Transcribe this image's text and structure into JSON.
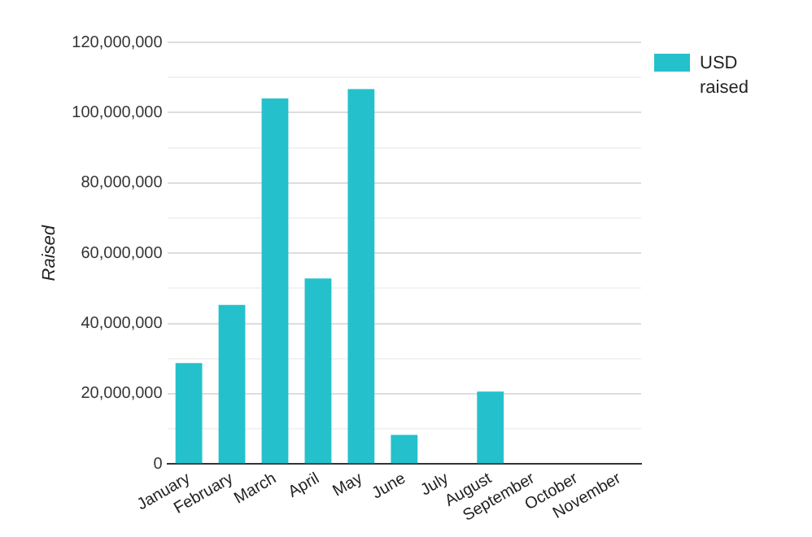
{
  "chart_data": {
    "type": "bar",
    "ylabel": "Raised",
    "categories": [
      "January",
      "February",
      "March",
      "April",
      "May",
      "June",
      "July",
      "August",
      "September",
      "October",
      "November"
    ],
    "series": [
      {
        "name": "USD raised",
        "color": "#24c1cc",
        "values": [
          28700000,
          45300000,
          104000000,
          52800000,
          106700000,
          8300000,
          0,
          20600000,
          0,
          0,
          0
        ]
      }
    ],
    "ylim": [
      0,
      120000000
    ],
    "yticks": [
      0,
      {
        "value": 10000000,
        "label": null
      },
      {
        "value": 20000000,
        "label": "20,000,000"
      },
      {
        "value": 30000000,
        "label": null
      },
      {
        "value": 40000000,
        "label": "40,000,000"
      },
      {
        "value": 50000000,
        "label": null
      },
      {
        "value": 60000000,
        "label": "60,000,000"
      },
      {
        "value": 70000000,
        "label": null
      },
      {
        "value": 80000000,
        "label": "80,000,000"
      },
      {
        "value": 90000000,
        "label": null
      },
      {
        "value": 100000000,
        "label": "100,000,000"
      },
      {
        "value": 110000000,
        "label": null
      },
      {
        "value": 120000000,
        "label": "120,000,000"
      }
    ],
    "grid": "y",
    "legend": "top right"
  }
}
